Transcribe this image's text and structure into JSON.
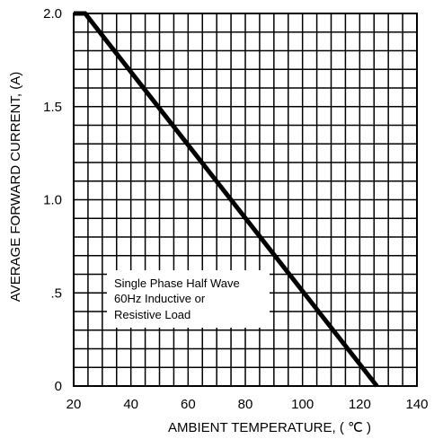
{
  "chart_data": {
    "type": "line",
    "xlabel": "AMBIENT TEMPERATURE, ( ℃ )",
    "ylabel": "AVERAGE FORWARD CURRENT, (A)",
    "xlim": [
      20,
      140
    ],
    "ylim": [
      0,
      2.0
    ],
    "x_ticks": [
      20,
      40,
      60,
      80,
      100,
      120,
      140
    ],
    "x_tick_labels": [
      "20",
      "40",
      "60",
      "80",
      "100",
      "120",
      "140"
    ],
    "y_ticks": [
      0,
      0.5,
      1.0,
      1.5,
      2.0
    ],
    "y_tick_labels": [
      "0",
      ".5",
      "1.0",
      "1.5",
      "2.0"
    ],
    "x_minor_step": 5,
    "y_minor_step": 0.1,
    "grid": true,
    "series": [
      {
        "x": [
          20,
          24,
          126
        ],
        "y": [
          2.0,
          2.0,
          0
        ]
      }
    ],
    "annotation": {
      "lines": [
        "Single Phase Half Wave",
        "60Hz Inductive or",
        "Resistive Load"
      ]
    }
  }
}
